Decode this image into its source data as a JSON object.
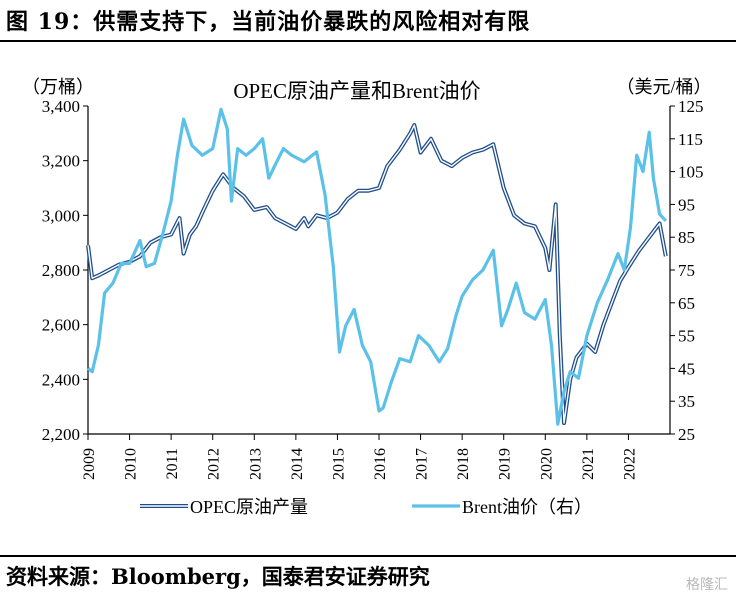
{
  "figure": {
    "title": "图 19：供需支持下，当前油价暴跌的风险相对有限",
    "source": "资料来源：Bloomberg，国泰君安证券研究",
    "watermark": "格隆汇"
  },
  "chart_data": {
    "type": "line",
    "title": "OPEC原油产量和Brent油价",
    "left_axis": {
      "unit_label": "（万桶）",
      "range": [
        2200,
        3400
      ],
      "ticks": [
        "2,200",
        "2,400",
        "2,600",
        "2,800",
        "3,000",
        "3,200",
        "3,400"
      ]
    },
    "right_axis": {
      "unit_label": "（美元/桶）",
      "range": [
        25,
        125
      ],
      "ticks": [
        "25",
        "35",
        "45",
        "55",
        "65",
        "75",
        "85",
        "95",
        "105",
        "115",
        "125"
      ]
    },
    "x_axis": {
      "range": [
        2009,
        2023
      ],
      "ticks": [
        "2009",
        "2010",
        "2011",
        "2012",
        "2013",
        "2014",
        "2015",
        "2016",
        "2017",
        "2018",
        "2019",
        "2020",
        "2021",
        "2022"
      ]
    },
    "legend_position": "bottom",
    "series": [
      {
        "name": "OPEC原油产量",
        "axis": "left",
        "color": "#1f4e8c",
        "points": [
          [
            2009.0,
            2890
          ],
          [
            2009.1,
            2770
          ],
          [
            2009.25,
            2780
          ],
          [
            2009.5,
            2800
          ],
          [
            2009.75,
            2820
          ],
          [
            2010.0,
            2830
          ],
          [
            2010.25,
            2850
          ],
          [
            2010.5,
            2900
          ],
          [
            2010.75,
            2920
          ],
          [
            2011.0,
            2930
          ],
          [
            2011.2,
            2990
          ],
          [
            2011.3,
            2860
          ],
          [
            2011.45,
            2930
          ],
          [
            2011.6,
            2960
          ],
          [
            2011.75,
            3010
          ],
          [
            2012.0,
            3090
          ],
          [
            2012.25,
            3150
          ],
          [
            2012.5,
            3100
          ],
          [
            2012.75,
            3070
          ],
          [
            2013.0,
            3020
          ],
          [
            2013.3,
            3030
          ],
          [
            2013.5,
            2990
          ],
          [
            2013.75,
            2970
          ],
          [
            2014.0,
            2950
          ],
          [
            2014.2,
            2990
          ],
          [
            2014.3,
            2960
          ],
          [
            2014.5,
            3000
          ],
          [
            2014.75,
            2990
          ],
          [
            2015.0,
            3010
          ],
          [
            2015.25,
            3060
          ],
          [
            2015.5,
            3090
          ],
          [
            2015.75,
            3090
          ],
          [
            2016.0,
            3100
          ],
          [
            2016.2,
            3180
          ],
          [
            2016.5,
            3240
          ],
          [
            2016.75,
            3300
          ],
          [
            2016.85,
            3330
          ],
          [
            2017.0,
            3230
          ],
          [
            2017.25,
            3280
          ],
          [
            2017.5,
            3200
          ],
          [
            2017.75,
            3180
          ],
          [
            2018.0,
            3210
          ],
          [
            2018.25,
            3230
          ],
          [
            2018.5,
            3240
          ],
          [
            2018.75,
            3260
          ],
          [
            2019.0,
            3100
          ],
          [
            2019.25,
            3000
          ],
          [
            2019.5,
            2970
          ],
          [
            2019.75,
            2960
          ],
          [
            2020.0,
            2880
          ],
          [
            2020.1,
            2800
          ],
          [
            2020.25,
            3040
          ],
          [
            2020.35,
            2560
          ],
          [
            2020.45,
            2240
          ],
          [
            2020.6,
            2400
          ],
          [
            2020.75,
            2480
          ],
          [
            2021.0,
            2530
          ],
          [
            2021.2,
            2500
          ],
          [
            2021.4,
            2600
          ],
          [
            2021.6,
            2680
          ],
          [
            2021.8,
            2760
          ],
          [
            2022.0,
            2810
          ],
          [
            2022.25,
            2870
          ],
          [
            2022.5,
            2920
          ],
          [
            2022.75,
            2970
          ],
          [
            2022.9,
            2850
          ]
        ]
      },
      {
        "name": "Brent油价（右）",
        "axis": "right",
        "color": "#5bc1e8",
        "points": [
          [
            2009.0,
            45
          ],
          [
            2009.1,
            44
          ],
          [
            2009.25,
            52
          ],
          [
            2009.4,
            68
          ],
          [
            2009.6,
            71
          ],
          [
            2009.8,
            77
          ],
          [
            2010.0,
            77
          ],
          [
            2010.25,
            84
          ],
          [
            2010.4,
            76
          ],
          [
            2010.6,
            77
          ],
          [
            2010.8,
            86
          ],
          [
            2011.0,
            96
          ],
          [
            2011.15,
            110
          ],
          [
            2011.3,
            121
          ],
          [
            2011.5,
            113
          ],
          [
            2011.75,
            110
          ],
          [
            2012.0,
            112
          ],
          [
            2012.2,
            124
          ],
          [
            2012.35,
            118
          ],
          [
            2012.45,
            96
          ],
          [
            2012.6,
            112
          ],
          [
            2012.8,
            110
          ],
          [
            2013.0,
            112
          ],
          [
            2013.2,
            115
          ],
          [
            2013.35,
            103
          ],
          [
            2013.5,
            107
          ],
          [
            2013.7,
            112
          ],
          [
            2013.9,
            110
          ],
          [
            2014.2,
            108
          ],
          [
            2014.5,
            111
          ],
          [
            2014.7,
            98
          ],
          [
            2014.9,
            76
          ],
          [
            2015.05,
            50
          ],
          [
            2015.2,
            58
          ],
          [
            2015.4,
            63
          ],
          [
            2015.6,
            52
          ],
          [
            2015.8,
            47
          ],
          [
            2016.0,
            32
          ],
          [
            2016.1,
            33
          ],
          [
            2016.3,
            41
          ],
          [
            2016.5,
            48
          ],
          [
            2016.75,
            47
          ],
          [
            2016.95,
            55
          ],
          [
            2017.2,
            52
          ],
          [
            2017.45,
            47
          ],
          [
            2017.65,
            51
          ],
          [
            2017.85,
            61
          ],
          [
            2018.0,
            67
          ],
          [
            2018.25,
            72
          ],
          [
            2018.5,
            75
          ],
          [
            2018.75,
            81
          ],
          [
            2018.95,
            58
          ],
          [
            2019.1,
            63
          ],
          [
            2019.3,
            71
          ],
          [
            2019.5,
            62
          ],
          [
            2019.75,
            60
          ],
          [
            2020.0,
            66
          ],
          [
            2020.15,
            52
          ],
          [
            2020.3,
            28
          ],
          [
            2020.45,
            38
          ],
          [
            2020.6,
            44
          ],
          [
            2020.8,
            42
          ],
          [
            2021.0,
            55
          ],
          [
            2021.25,
            65
          ],
          [
            2021.5,
            72
          ],
          [
            2021.75,
            80
          ],
          [
            2021.9,
            75
          ],
          [
            2022.05,
            88
          ],
          [
            2022.2,
            110
          ],
          [
            2022.35,
            105
          ],
          [
            2022.5,
            117
          ],
          [
            2022.6,
            103
          ],
          [
            2022.75,
            92
          ],
          [
            2022.9,
            90
          ]
        ]
      }
    ]
  }
}
